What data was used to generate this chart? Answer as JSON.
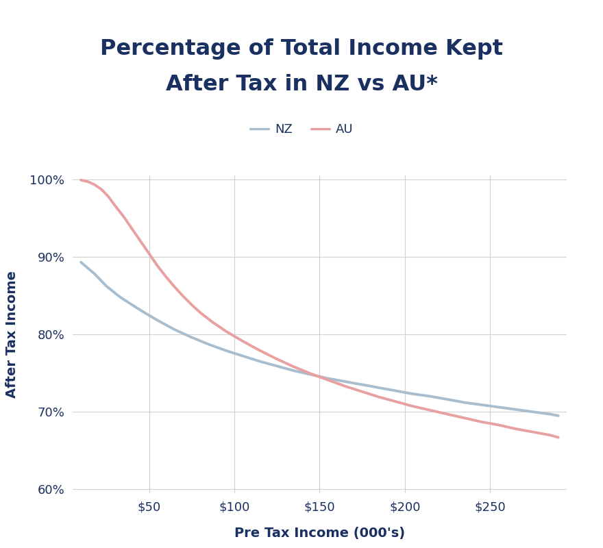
{
  "title_line1": "Percentage of Total Income Kept",
  "title_line2": "After Tax in NZ vs AU*",
  "xlabel": "Pre Tax Income (000's)",
  "ylabel": "After Tax Income",
  "background_color": "#ffffff",
  "title_color": "#1a3060",
  "axis_label_color": "#1a3060",
  "tick_label_color": "#1a3060",
  "grid_color": "#cccccc",
  "nz_color": "#a8bece",
  "au_color": "#e8a0a0",
  "nz_label": "NZ",
  "au_label": "AU",
  "line_width": 2.8,
  "xlim": [
    5,
    295
  ],
  "ylim": [
    0.595,
    1.005
  ],
  "xticks": [
    50,
    100,
    150,
    200,
    250
  ],
  "yticks": [
    0.6,
    0.7,
    0.8,
    0.9,
    1.0
  ],
  "nz_x": [
    10,
    18,
    25,
    33,
    40,
    48,
    55,
    65,
    75,
    85,
    95,
    105,
    115,
    125,
    135,
    145,
    155,
    165,
    175,
    185,
    195,
    205,
    215,
    225,
    235,
    245,
    255,
    265,
    275,
    285,
    290
  ],
  "nz_y": [
    0.893,
    0.878,
    0.862,
    0.848,
    0.838,
    0.827,
    0.818,
    0.806,
    0.796,
    0.787,
    0.779,
    0.772,
    0.765,
    0.759,
    0.753,
    0.748,
    0.743,
    0.739,
    0.735,
    0.731,
    0.727,
    0.723,
    0.72,
    0.716,
    0.712,
    0.709,
    0.706,
    0.703,
    0.7,
    0.697,
    0.695
  ],
  "au_x": [
    10,
    14,
    18,
    22,
    26,
    30,
    35,
    40,
    45,
    50,
    55,
    60,
    65,
    70,
    75,
    80,
    87,
    95,
    105,
    115,
    125,
    135,
    145,
    155,
    165,
    175,
    185,
    195,
    205,
    215,
    225,
    235,
    245,
    255,
    265,
    275,
    285,
    290
  ],
  "au_y": [
    0.999,
    0.997,
    0.993,
    0.987,
    0.978,
    0.966,
    0.952,
    0.936,
    0.92,
    0.904,
    0.888,
    0.874,
    0.861,
    0.849,
    0.838,
    0.828,
    0.816,
    0.804,
    0.791,
    0.779,
    0.768,
    0.758,
    0.749,
    0.741,
    0.733,
    0.726,
    0.719,
    0.713,
    0.707,
    0.702,
    0.697,
    0.692,
    0.687,
    0.683,
    0.678,
    0.674,
    0.67,
    0.667
  ]
}
